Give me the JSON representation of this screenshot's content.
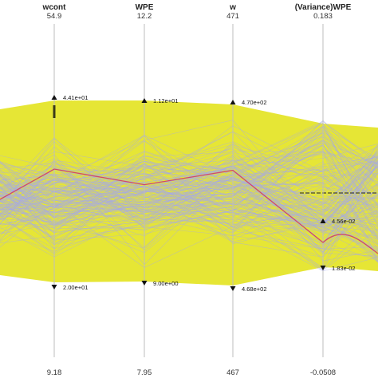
{
  "chart_data": {
    "type": "parallel-coordinates",
    "axes": [
      {
        "name": "wcont",
        "max": "54.9",
        "min": "9.18",
        "max_value": 54.9,
        "min_value": 9.18,
        "brush_high": "4.41e+01",
        "brush_low": "2.00e+01",
        "brush_high_value": 44.1,
        "brush_low_value": 20.0
      },
      {
        "name": "WPE",
        "max": "12.2",
        "min": "7.95",
        "max_value": 12.2,
        "min_value": 7.95,
        "brush_high": "1.12e+01",
        "brush_low": "9.00e+00",
        "brush_high_value": 11.2,
        "brush_low_value": 9.0
      },
      {
        "name": "w",
        "max": "471",
        "min": "467",
        "max_value": 471,
        "min_value": 467,
        "brush_high": "4.70e+02",
        "brush_low": "4.68e+02",
        "brush_high_value": 470,
        "brush_low_value": 468
      },
      {
        "name": "(Variance)WPE",
        "max": "0.183",
        "min": "-0.0508",
        "max_value": 0.183,
        "min_value": -0.0508,
        "brush_high": "4.56e-02",
        "brush_low": "1.83e-02",
        "brush_high_value": 0.0456,
        "brush_low_value": 0.0183
      }
    ],
    "highlighted_line": [
      34.5,
      10.1,
      469.2,
      0.026
    ],
    "colors": {
      "envelope": "#e6e635",
      "lines": "#a4a8ee",
      "highlight": "#d0496d",
      "axis": "#bdbdbd"
    },
    "grid": false,
    "legend": "none"
  }
}
